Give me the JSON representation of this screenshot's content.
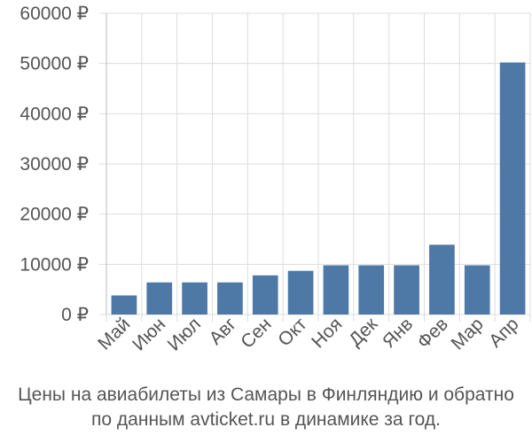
{
  "chart_data": {
    "type": "bar",
    "categories": [
      "Май",
      "Июн",
      "Июл",
      "Авг",
      "Сен",
      "Окт",
      "Ноя",
      "Дек",
      "Янв",
      "Фев",
      "Мар",
      "Апр"
    ],
    "values": [
      3800,
      6400,
      6400,
      6400,
      7800,
      8700,
      9800,
      9800,
      9800,
      13900,
      9800,
      50200
    ],
    "ylim": [
      0,
      60000
    ],
    "yticks": [
      0,
      10000,
      20000,
      30000,
      40000,
      50000,
      60000
    ],
    "ytick_labels": [
      "0 ₽",
      "10000 ₽",
      "20000 ₽",
      "30000 ₽",
      "40000 ₽",
      "50000 ₽",
      "60000 ₽"
    ],
    "grid": true,
    "bar_color": "#4e79a7"
  },
  "caption": {
    "line1": "Цены на авиабилеты из Самары в Финляндию и обратно",
    "line2": "по данным avticket.ru в динамике за год."
  }
}
